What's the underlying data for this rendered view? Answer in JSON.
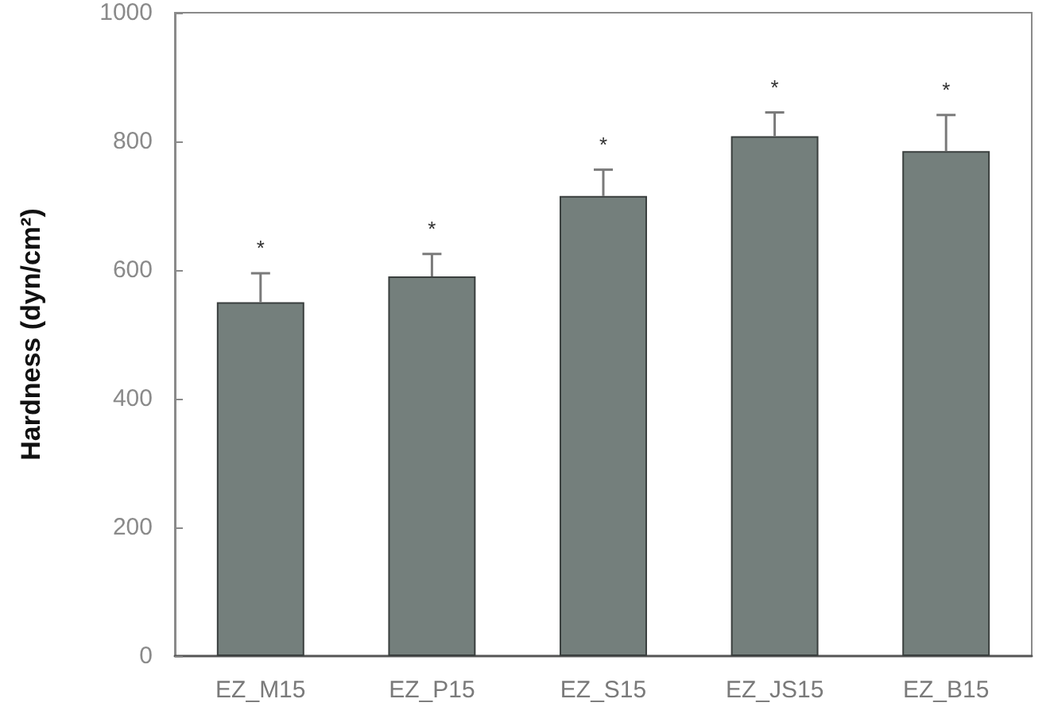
{
  "chart_data": {
    "type": "bar",
    "ylabel": "Hardness (dyn/cm²)",
    "categories": [
      "EZ_M15",
      "EZ_P15",
      "EZ_S15",
      "EZ_JS15",
      "EZ_B15"
    ],
    "values": [
      550,
      590,
      715,
      808,
      785
    ],
    "color": "#747f7c",
    "errors": [
      [
        550,
        595
      ],
      [
        590,
        625
      ],
      [
        715,
        756
      ],
      [
        808,
        845
      ],
      [
        785,
        841
      ]
    ],
    "ylim": [
      0,
      1000
    ],
    "yticks": [
      0,
      200,
      400,
      600,
      800,
      1000
    ],
    "grid": false,
    "annotations": [
      {
        "text": "*",
        "x": "EZ_M15",
        "y": 550
      },
      {
        "text": "*",
        "x": "EZ_P15",
        "y": 590
      },
      {
        "text": "*",
        "x": "EZ_S15",
        "y": 715
      },
      {
        "text": "*",
        "x": "EZ_JS15",
        "y": 808
      },
      {
        "text": "*",
        "x": "EZ_B15",
        "y": 785
      }
    ]
  }
}
